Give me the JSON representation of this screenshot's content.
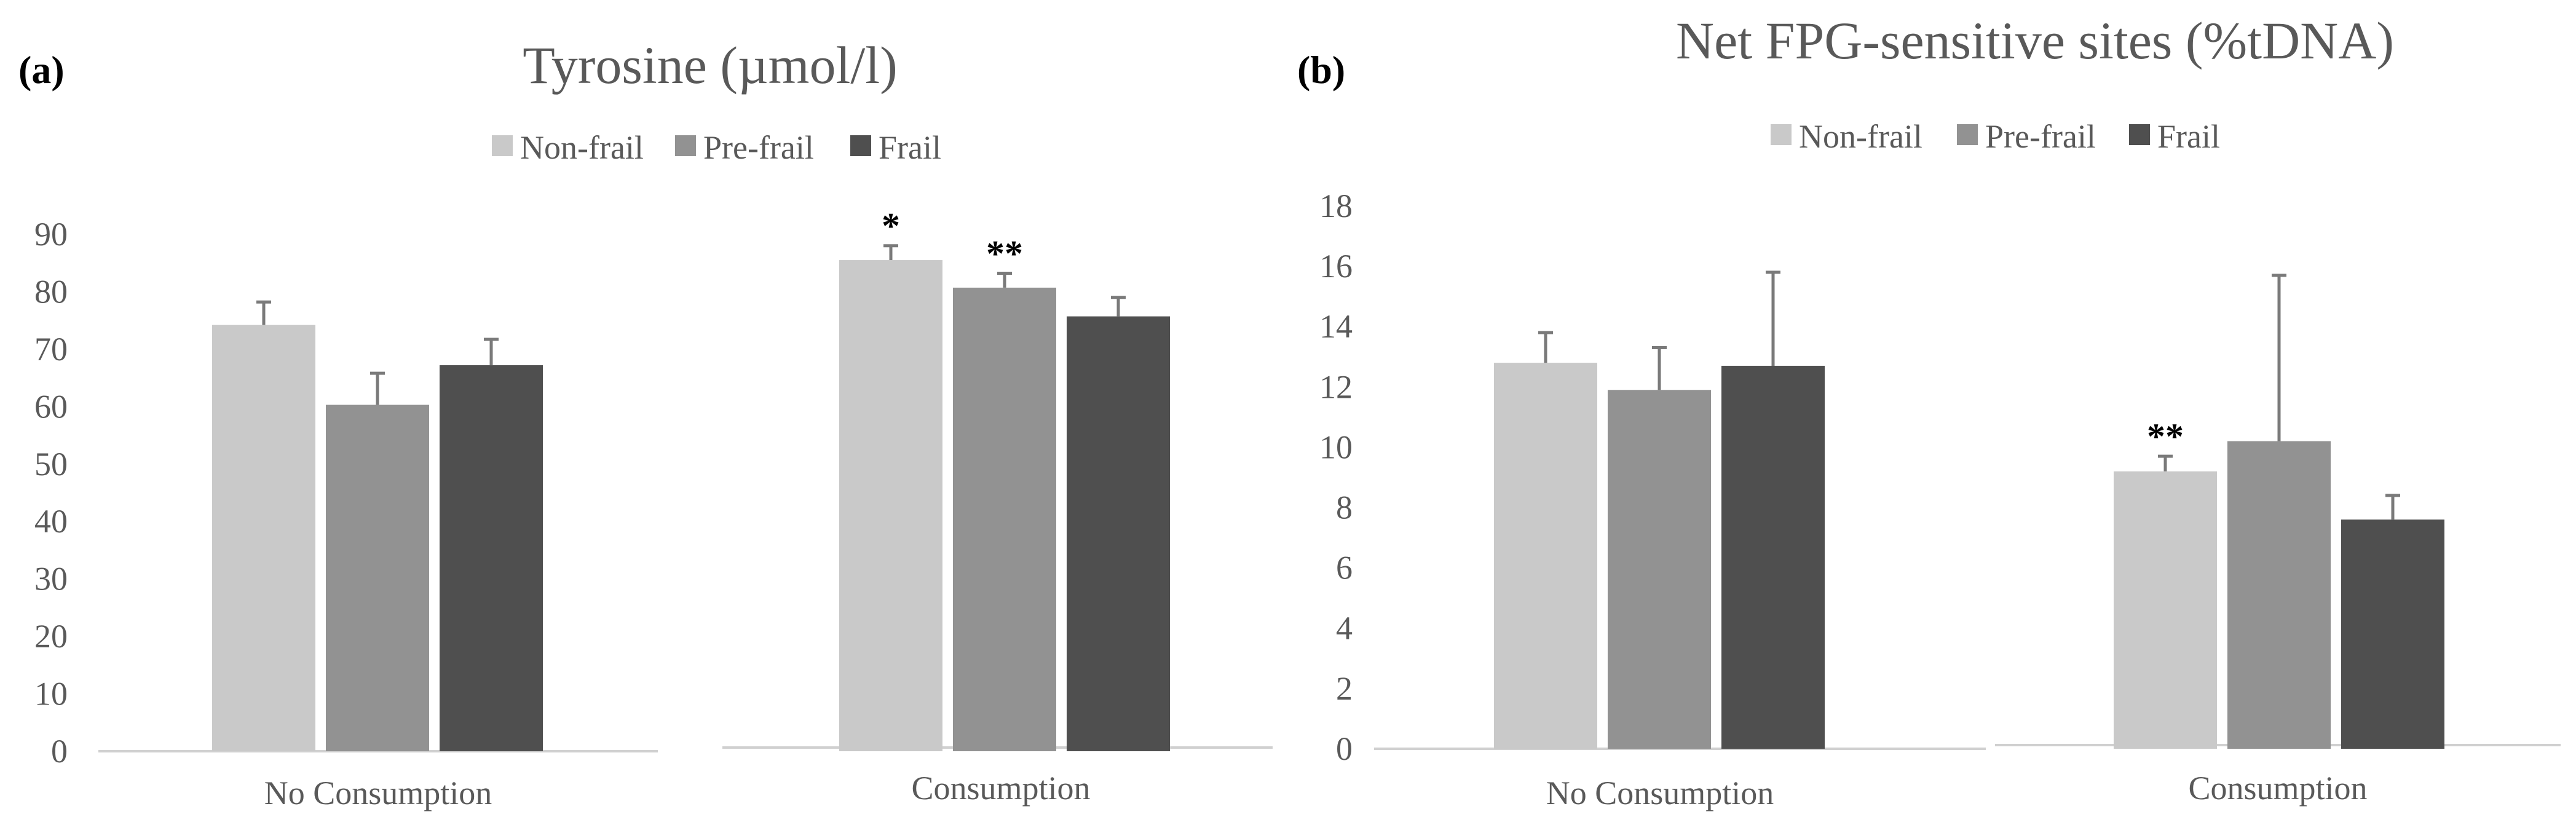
{
  "chart_data": [
    {
      "type": "bar",
      "panel_label": "(a)",
      "title": "Tyrosine (µmol/l)",
      "categories": [
        "No Consumption",
        "Consumption"
      ],
      "ylim": [
        0,
        90
      ],
      "yticks": [
        0,
        10,
        20,
        30,
        40,
        50,
        60,
        70,
        80,
        90
      ],
      "legend": "top-center",
      "grid": false,
      "series": [
        {
          "name": "Non-frail",
          "color": "#c9c9c9",
          "values": [
            74.2,
            85.5
          ],
          "errors": [
            4.0,
            2.5
          ],
          "significance": [
            "",
            "*"
          ]
        },
        {
          "name": "Pre-frail",
          "color": "#929292",
          "values": [
            60.3,
            80.7
          ],
          "errors": [
            5.5,
            2.5
          ],
          "significance": [
            "",
            "**"
          ]
        },
        {
          "name": "Frail",
          "color": "#4f4f4f",
          "values": [
            67.2,
            75.7
          ],
          "errors": [
            4.5,
            3.3
          ],
          "significance": [
            "",
            ""
          ]
        }
      ]
    },
    {
      "type": "bar",
      "panel_label": "(b)",
      "title": "Net FPG-sensitive sites (%tDNA)",
      "categories": [
        "No Consumption",
        "Consumption"
      ],
      "ylim": [
        0,
        18
      ],
      "yticks": [
        0,
        2,
        4,
        6,
        8,
        10,
        12,
        14,
        16,
        18
      ],
      "legend": "top-center",
      "grid": false,
      "series": [
        {
          "name": "Non-frail",
          "color": "#c9c9c9",
          "values": [
            12.8,
            9.2
          ],
          "errors": [
            1.0,
            0.5
          ],
          "significance": [
            "",
            "**"
          ]
        },
        {
          "name": "Pre-frail",
          "color": "#929292",
          "values": [
            11.9,
            10.2
          ],
          "errors": [
            1.4,
            5.5
          ],
          "significance": [
            "",
            ""
          ]
        },
        {
          "name": "Frail",
          "color": "#4f4f4f",
          "values": [
            12.7,
            7.6
          ],
          "errors": [
            3.1,
            0.8
          ],
          "significance": [
            "",
            ""
          ]
        }
      ]
    }
  ]
}
